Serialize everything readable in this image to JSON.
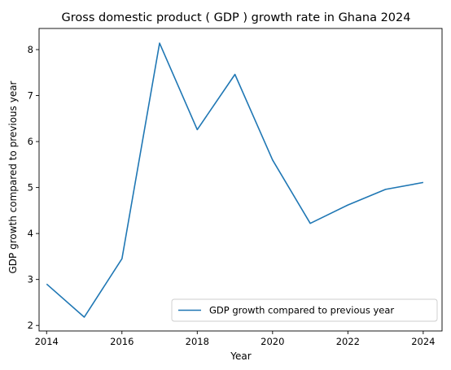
{
  "chart_data": {
    "type": "line",
    "title": "Gross domestic product ( GDP ) growth rate in Ghana 2024",
    "xlabel": "Year",
    "ylabel": "GDP growth compared to previous year",
    "xlim": [
      2013.8,
      2024.5
    ],
    "ylim": [
      1.88,
      8.46
    ],
    "xticks": [
      2014,
      2016,
      2018,
      2020,
      2022,
      2024
    ],
    "yticks": [
      2,
      3,
      4,
      5,
      6,
      7,
      8
    ],
    "grid": false,
    "legend_position": "lower-right",
    "series": [
      {
        "name": "GDP growth compared to previous year",
        "color": "#1f77b4",
        "x": [
          2014,
          2015,
          2016,
          2017,
          2018,
          2019,
          2020,
          2021,
          2022,
          2023,
          2024
        ],
        "y": [
          2.9,
          2.18,
          3.45,
          8.14,
          6.26,
          7.46,
          5.6,
          4.22,
          4.62,
          4.96,
          5.11
        ]
      }
    ]
  }
}
